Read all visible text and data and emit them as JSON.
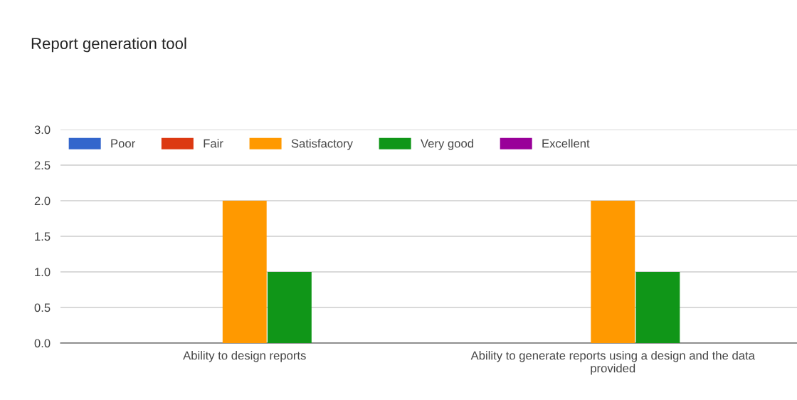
{
  "chart_data": {
    "type": "bar",
    "title": "Report generation tool",
    "categories": [
      "Ability to design reports",
      "Ability to generate reports using a design and the data\nprovided"
    ],
    "series": [
      {
        "name": "Poor",
        "color": "#3366cc",
        "values": [
          0,
          0
        ]
      },
      {
        "name": "Fair",
        "color": "#dc3912",
        "values": [
          0,
          0
        ]
      },
      {
        "name": "Satisfactory",
        "color": "#ff9900",
        "values": [
          2,
          2
        ]
      },
      {
        "name": "Very good",
        "color": "#109618",
        "values": [
          1,
          1
        ]
      },
      {
        "name": "Excellent",
        "color": "#990099",
        "values": [
          0,
          0
        ]
      }
    ],
    "ylim": [
      0,
      3
    ],
    "yticks": [
      {
        "value": 0,
        "label": "0.0"
      },
      {
        "value": 0.5,
        "label": "0.5"
      },
      {
        "value": 1,
        "label": "1.0"
      },
      {
        "value": 1.5,
        "label": "1.5"
      },
      {
        "value": 2,
        "label": "2.0"
      },
      {
        "value": 2.5,
        "label": "2.5"
      },
      {
        "value": 3,
        "label": "3.0"
      }
    ],
    "grid": "y",
    "legend": "top left"
  }
}
